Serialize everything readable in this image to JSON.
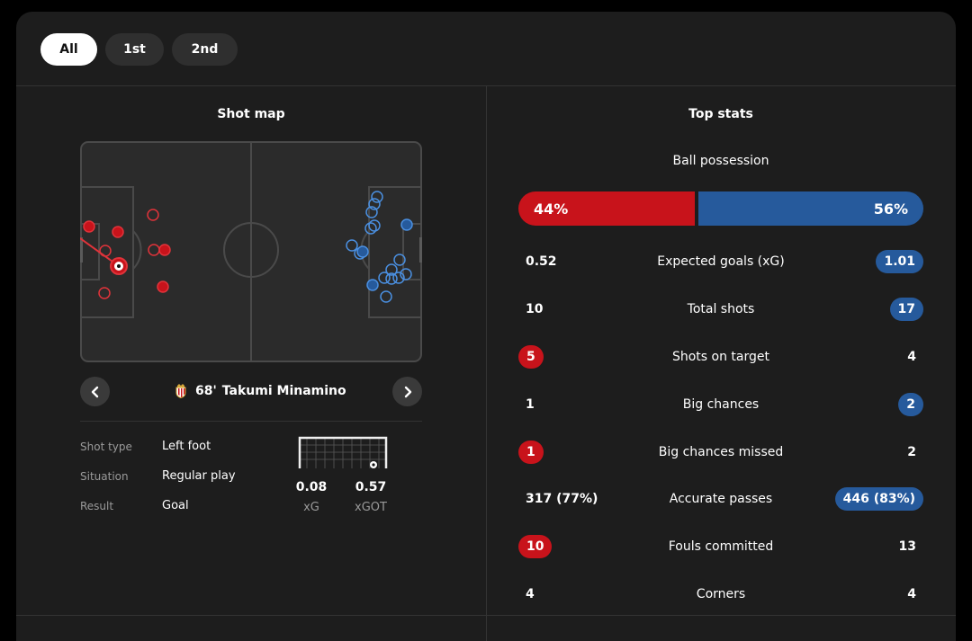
{
  "tabs": [
    {
      "label": "All"
    },
    {
      "label": "1st"
    },
    {
      "label": "2nd"
    }
  ],
  "colors": {
    "home": "#c8131b",
    "away": "#265a9c",
    "panel": "#1d1d1d",
    "pitch": "#2b2b2b"
  },
  "shot_map": {
    "title": "Shot map",
    "selected": {
      "minute": "68'",
      "player": "Takumi Minamino",
      "team_icon": "monaco-crest-icon",
      "details": [
        {
          "label": "Shot type",
          "value": "Left foot"
        },
        {
          "label": "Situation",
          "value": "Regular play"
        },
        {
          "label": "Result",
          "value": "Goal"
        }
      ],
      "xg": {
        "value": "0.08",
        "label": "xG"
      },
      "xgot": {
        "value": "0.57",
        "label": "xGOT"
      }
    }
  },
  "top_stats": {
    "title": "Top stats",
    "possession": {
      "label": "Ball possession",
      "home": "44%",
      "away": "56%",
      "home_pct": 44,
      "away_pct": 56
    },
    "rows": [
      {
        "name": "Expected goals (xG)",
        "home": "0.52",
        "away": "1.01",
        "highlight": "away"
      },
      {
        "name": "Total shots",
        "home": "10",
        "away": "17",
        "highlight": "away"
      },
      {
        "name": "Shots on target",
        "home": "5",
        "away": "4",
        "highlight": "home"
      },
      {
        "name": "Big chances",
        "home": "1",
        "away": "2",
        "highlight": "away"
      },
      {
        "name": "Big chances missed",
        "home": "1",
        "away": "2",
        "highlight": "home"
      },
      {
        "name": "Accurate passes",
        "home": "317 (77%)",
        "away": "446 (83%)",
        "highlight": "away"
      },
      {
        "name": "Fouls committed",
        "home": "10",
        "away": "13",
        "highlight": "home"
      },
      {
        "name": "Corners",
        "home": "4",
        "away": "4",
        "highlight": "none"
      }
    ]
  }
}
